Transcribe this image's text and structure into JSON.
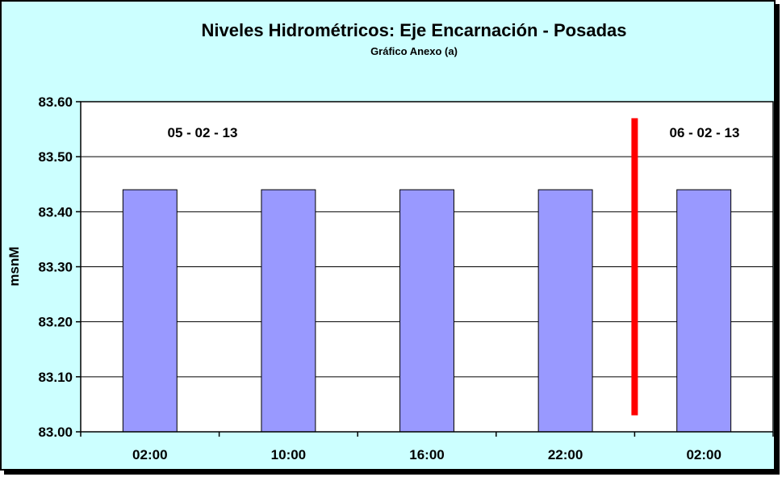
{
  "chart_data": {
    "type": "bar",
    "title": "Niveles Hidrométricos: Eje Encarnación - Posadas",
    "subtitle": "Gráfico Anexo (a)",
    "ylabel": "msnM",
    "xlabel": "",
    "categories": [
      "02:00",
      "10:00",
      "16:00",
      "22:00",
      "02:00"
    ],
    "values": [
      83.44,
      83.44,
      83.44,
      83.44,
      83.44
    ],
    "ylim": [
      83.0,
      83.6
    ],
    "yticks": [
      "83.00",
      "83.10",
      "83.20",
      "83.30",
      "83.40",
      "83.50",
      "83.60"
    ],
    "grid": true,
    "annotations": [
      "05 - 02 - 13",
      "06 - 02 - 13"
    ],
    "divider": {
      "between_categories": [
        3,
        4
      ],
      "y_from": 83.03,
      "y_to": 83.57
    },
    "colors": {
      "bar": "#9999ff",
      "divider": "#ff0000",
      "background": "#ccffff",
      "plot": "#ffffff"
    }
  }
}
